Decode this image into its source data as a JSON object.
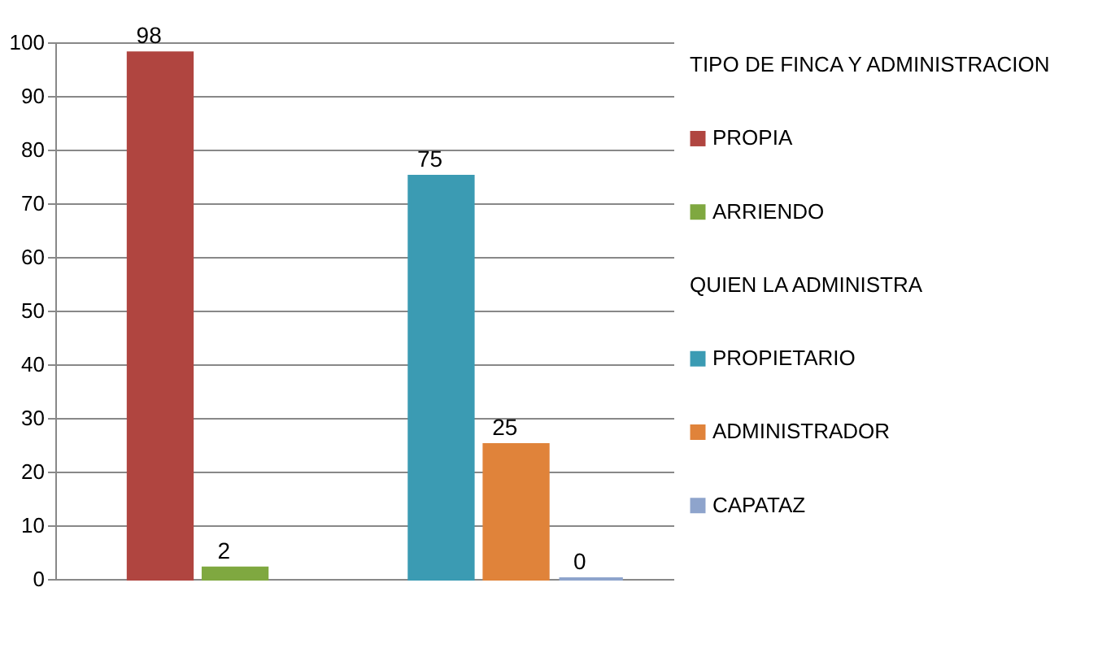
{
  "chart_data": {
    "type": "bar",
    "categories": [
      null,
      null
    ],
    "legend_title": "TIPO DE FINCA Y ADMINISTRACION",
    "annotations": [
      "QUIEN LA ADMINISTRA"
    ],
    "series": [
      {
        "name": "PROPIA",
        "color": "#b04540",
        "values": [
          98,
          null
        ]
      },
      {
        "name": "ARRIENDO",
        "color": "#7fa840",
        "values": [
          2,
          null
        ]
      },
      {
        "name": "PROPIETARIO",
        "color": "#3b9bb3",
        "values": [
          null,
          75
        ]
      },
      {
        "name": "ADMINISTRADOR",
        "color": "#e0833a",
        "values": [
          null,
          25
        ]
      },
      {
        "name": "CAPATAZ",
        "color": "#8ea4cc",
        "values": [
          null,
          0
        ]
      }
    ],
    "ylim": [
      0,
      100
    ],
    "yticks": [
      0,
      10,
      20,
      30,
      40,
      50,
      60,
      70,
      80,
      90,
      100
    ],
    "grid": "y",
    "data_labels": true,
    "legend": "right"
  }
}
